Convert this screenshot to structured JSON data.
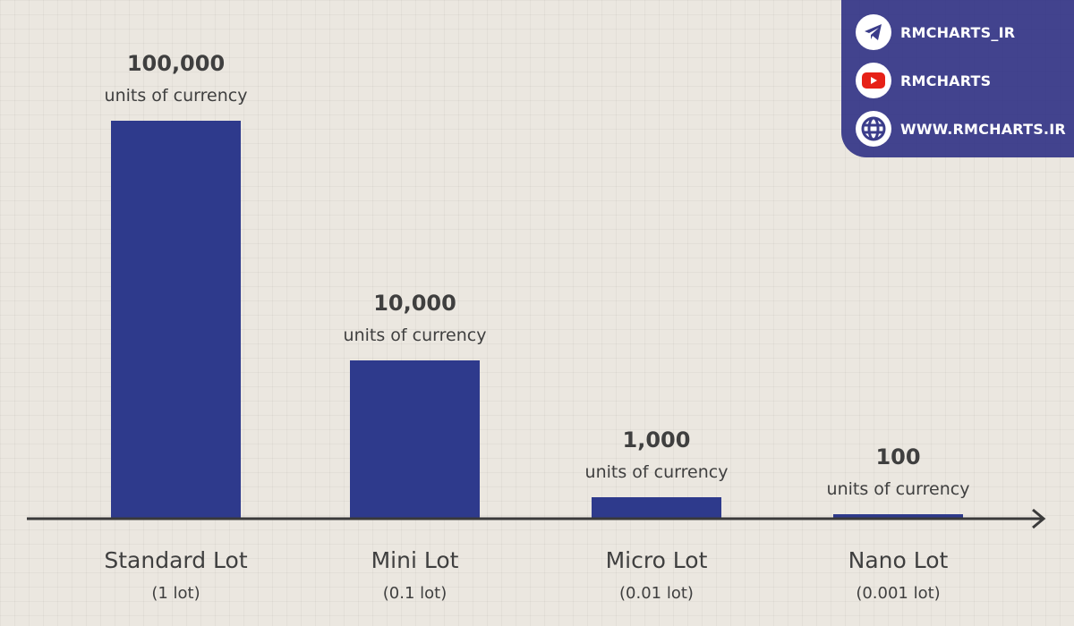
{
  "chart_data": {
    "type": "bar",
    "categories": [
      "Standard Lot",
      "Mini Lot",
      "Micro Lot",
      "Nano Lot"
    ],
    "subcategories": [
      "(1 lot)",
      "(0.1 lot)",
      "(0.01 lot)",
      "(0.001 lot)"
    ],
    "values": [
      100000,
      10000,
      1000,
      100
    ],
    "value_labels": [
      "100,000",
      "10,000",
      "1,000",
      "100"
    ],
    "unit_label": "units of currency",
    "title": "",
    "xlabel": "",
    "ylabel": "",
    "grid": false,
    "bar_color": "#2e3a8c",
    "axis_color": "#3a3a3a"
  },
  "social": {
    "telegram": "RMCHARTS_IR",
    "youtube": "RMCHARTS",
    "website": "WWW.RMCHARTS.IR"
  }
}
